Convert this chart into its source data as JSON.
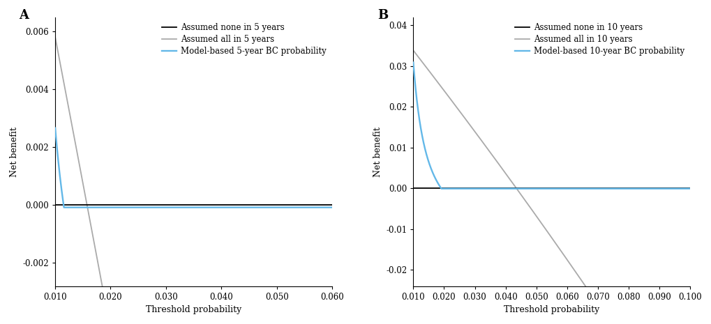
{
  "panel_A": {
    "label": "A",
    "x_min": 0.01,
    "x_max": 0.06,
    "x_ticks": [
      0.01,
      0.02,
      0.03,
      0.04,
      0.05,
      0.06
    ],
    "y_min": -0.0028,
    "y_max": 0.0065,
    "y_ticks": [
      -0.002,
      0.0,
      0.002,
      0.004,
      0.006
    ],
    "xlabel": "Threshold probability",
    "ylabel": "Net benefit",
    "legend": [
      "Assumed none in 5 years",
      "Assumed all in 5 years",
      "Model-based 5-year BC probability"
    ],
    "none_color": "#000000",
    "all_color": "#aaaaaa",
    "model_color": "#63b8e8",
    "event_rate": 0.01575,
    "model_event_rate": 0.01575,
    "model_shape": 2.5,
    "all_crosszero": 0.01575
  },
  "panel_B": {
    "label": "B",
    "x_min": 0.01,
    "x_max": 0.1,
    "x_ticks": [
      0.01,
      0.02,
      0.03,
      0.04,
      0.05,
      0.06,
      0.07,
      0.08,
      0.09,
      0.1
    ],
    "y_min": -0.024,
    "y_max": 0.042,
    "y_ticks": [
      -0.02,
      -0.01,
      0.0,
      0.01,
      0.02,
      0.03,
      0.04
    ],
    "xlabel": "Threshold probability",
    "ylabel": "Net benefit",
    "legend": [
      "Assumed none in 10 years",
      "Assumed all in 10 years",
      "Model-based 10-year BC probability"
    ],
    "none_color": "#000000",
    "all_color": "#aaaaaa",
    "model_color": "#63b8e8",
    "event_rate": 0.0435,
    "model_event_rate": 0.0435,
    "model_shape": 2.5,
    "all_crosszero": 0.0435
  },
  "background_color": "#ffffff",
  "linewidth": 1.3,
  "fontsize_label": 9,
  "fontsize_tick": 8.5,
  "fontsize_legend": 8.5,
  "fontsize_panel_label": 13
}
